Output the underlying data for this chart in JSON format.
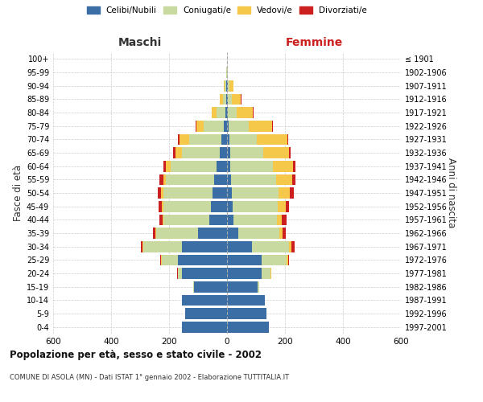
{
  "age_groups": [
    "0-4",
    "5-9",
    "10-14",
    "15-19",
    "20-24",
    "25-29",
    "30-34",
    "35-39",
    "40-44",
    "45-49",
    "50-54",
    "55-59",
    "60-64",
    "65-69",
    "70-74",
    "75-79",
    "80-84",
    "85-89",
    "90-94",
    "95-99",
    "100+"
  ],
  "birth_years": [
    "1997-2001",
    "1992-1996",
    "1987-1991",
    "1982-1986",
    "1977-1981",
    "1972-1976",
    "1967-1971",
    "1962-1966",
    "1957-1961",
    "1952-1956",
    "1947-1951",
    "1942-1946",
    "1937-1941",
    "1932-1936",
    "1927-1931",
    "1922-1926",
    "1917-1921",
    "1912-1916",
    "1907-1911",
    "1902-1906",
    "≤ 1901"
  ],
  "colors": {
    "celibi": "#3a6ea5",
    "coniugati": "#c8daa0",
    "vedovi": "#f5c84a",
    "divorziati": "#cc2020"
  },
  "males": {
    "celibi": [
      155,
      145,
      155,
      115,
      155,
      170,
      155,
      100,
      60,
      55,
      50,
      45,
      35,
      25,
      20,
      10,
      5,
      3,
      2,
      1,
      0
    ],
    "coniugati": [
      0,
      0,
      0,
      2,
      15,
      55,
      135,
      145,
      160,
      165,
      170,
      165,
      160,
      130,
      110,
      70,
      30,
      12,
      5,
      1,
      0
    ],
    "vedovi": [
      0,
      0,
      0,
      0,
      0,
      2,
      2,
      2,
      3,
      5,
      7,
      10,
      15,
      22,
      35,
      25,
      18,
      10,
      5,
      1,
      0
    ],
    "divorziati": [
      0,
      0,
      0,
      0,
      1,
      3,
      5,
      8,
      10,
      10,
      12,
      12,
      10,
      8,
      4,
      2,
      1,
      0,
      0,
      0,
      0
    ]
  },
  "females": {
    "nubili": [
      145,
      135,
      130,
      105,
      120,
      120,
      85,
      40,
      22,
      20,
      18,
      15,
      12,
      10,
      8,
      5,
      4,
      3,
      2,
      1,
      0
    ],
    "coniugate": [
      0,
      0,
      0,
      5,
      30,
      85,
      130,
      140,
      150,
      155,
      160,
      155,
      145,
      115,
      95,
      70,
      30,
      15,
      5,
      1,
      0
    ],
    "vedove": [
      0,
      0,
      0,
      0,
      2,
      5,
      8,
      12,
      18,
      28,
      40,
      55,
      70,
      90,
      105,
      80,
      55,
      30,
      15,
      2,
      0
    ],
    "divorziate": [
      0,
      0,
      0,
      0,
      1,
      3,
      10,
      12,
      15,
      10,
      12,
      12,
      10,
      5,
      4,
      3,
      2,
      1,
      0,
      0,
      0
    ]
  },
  "title": "Popolazione per età, sesso e stato civile - 2002",
  "subtitle": "COMUNE DI ASOLA (MN) - Dati ISTAT 1° gennaio 2002 - Elaborazione TUTTITALIA.IT",
  "xlabel_left": "Maschi",
  "xlabel_right": "Femmine",
  "ylabel_left": "Fasce di età",
  "ylabel_right": "Anni di nascita",
  "xlim": 600,
  "background_color": "#ffffff",
  "grid_color": "#cccccc"
}
